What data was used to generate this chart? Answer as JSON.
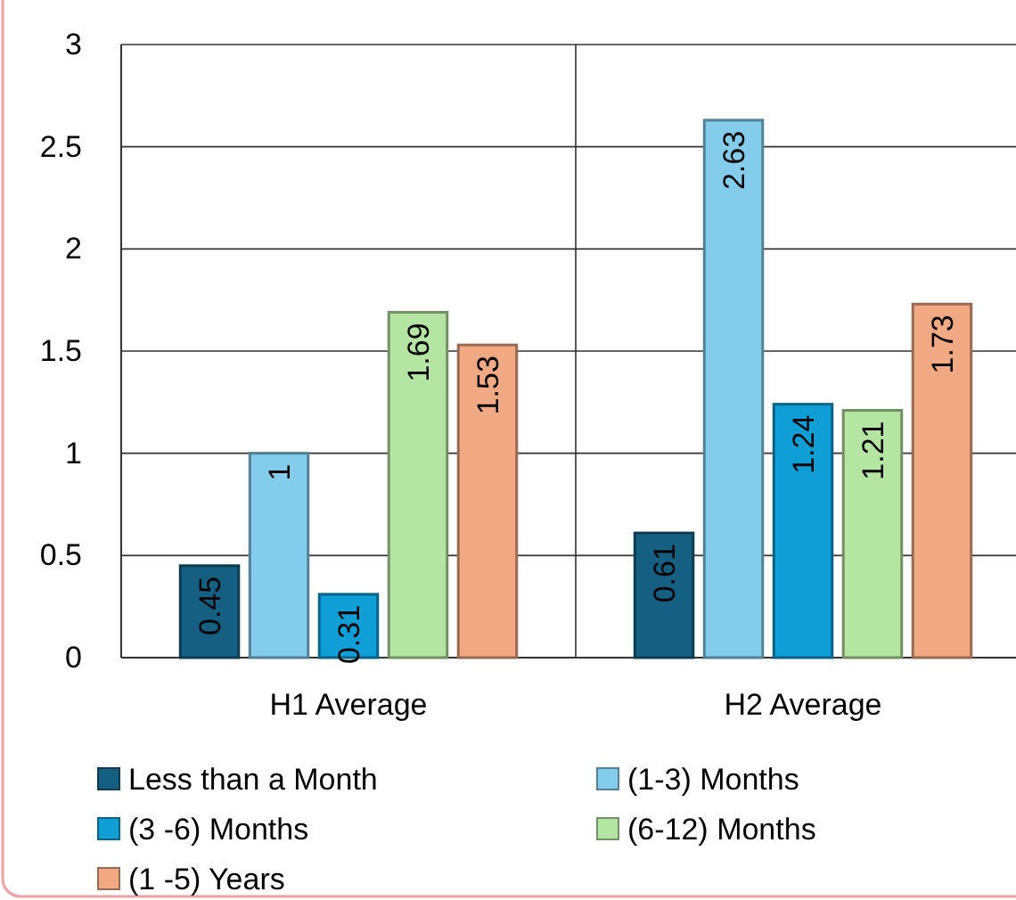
{
  "chart_data": {
    "type": "bar",
    "categories": [
      "H1 Average",
      "H2 Average"
    ],
    "series": [
      {
        "name": "Less than a Month",
        "color": "#156082",
        "values": [
          0.45,
          0.61
        ]
      },
      {
        "name": "(1-3) Months",
        "color": "#83cceb",
        "values": [
          1,
          2.63
        ]
      },
      {
        "name": "(3 -6) Months",
        "color": "#0f9ed5",
        "values": [
          0.31,
          1.24
        ]
      },
      {
        "name": "(6-12) Months",
        "color": "#b4e5a2",
        "values": [
          1.69,
          1.21
        ]
      },
      {
        "name": "(1 -5) Years",
        "color": "#f1a983",
        "values": [
          1.53,
          1.73
        ]
      }
    ],
    "ylim": [
      0,
      3
    ],
    "yticks": [
      0,
      0.5,
      1,
      1.5,
      2,
      2.5,
      3
    ],
    "grid": true,
    "data_labels": true,
    "legend": "bottom"
  }
}
